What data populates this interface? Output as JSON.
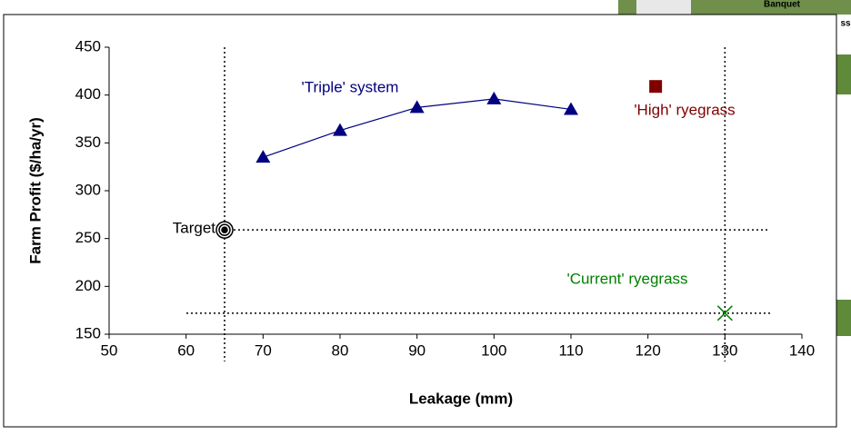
{
  "chart_data": {
    "type": "scatter",
    "x_label": "Leakage (mm)",
    "y_label": "Farm Profit ($/ha/yr)",
    "xlim": [
      50,
      140
    ],
    "xticks": [
      50,
      60,
      70,
      80,
      90,
      100,
      110,
      120,
      130,
      140
    ],
    "ylim": [
      150,
      450
    ],
    "yticks": [
      150,
      200,
      250,
      300,
      350,
      400,
      450
    ],
    "series": [
      {
        "name": "'Triple' system",
        "color": "#000080",
        "marker": "triangle",
        "line": true,
        "x": [
          70,
          80,
          90,
          100,
          110
        ],
        "values": [
          335,
          363,
          387,
          396,
          385
        ]
      },
      {
        "name": "'High' ryegrass",
        "color": "#800000",
        "marker": "square",
        "line": false,
        "x": [
          121
        ],
        "values": [
          409
        ]
      },
      {
        "name": "'Current' ryegrass",
        "color": "#008000",
        "marker": "cross",
        "line": false,
        "x": [
          130
        ],
        "values": [
          172
        ]
      },
      {
        "name": "Target",
        "color": "#000000",
        "marker": "target",
        "line": false,
        "x": [
          65
        ],
        "values": [
          259
        ]
      }
    ]
  },
  "background": {
    "labels": [
      "Banquet",
      "ss"
    ]
  }
}
